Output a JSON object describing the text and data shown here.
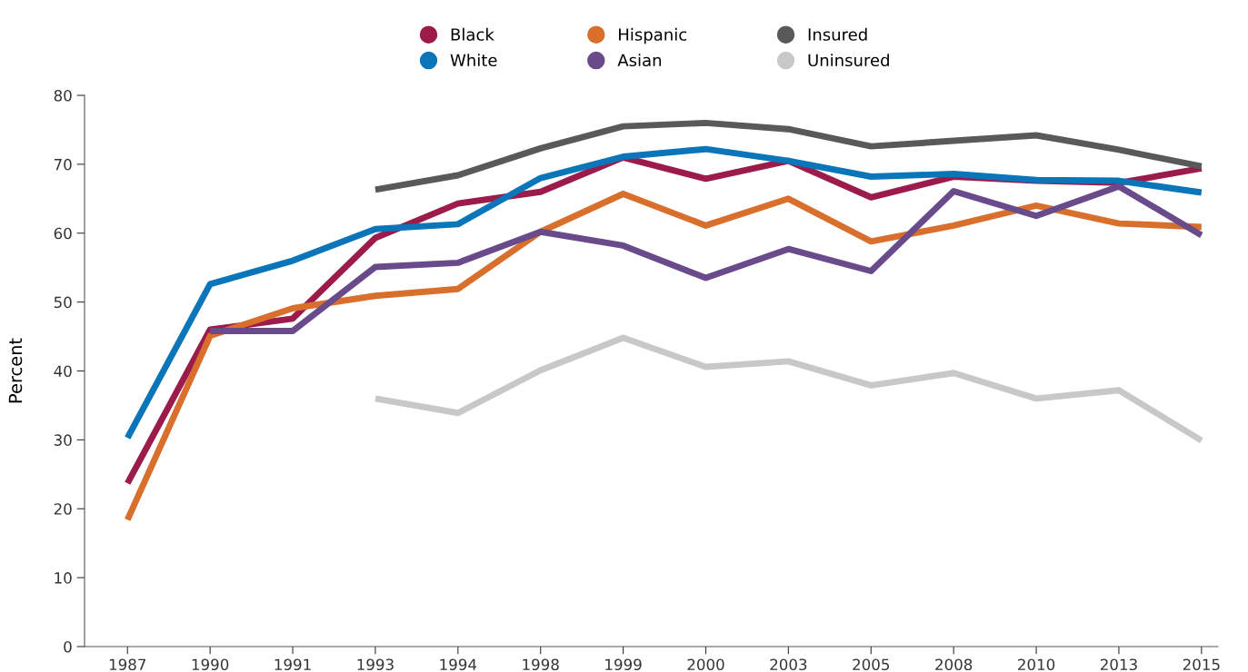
{
  "chart_data": {
    "type": "line",
    "ylabel": "Percent",
    "categories": [
      "1987",
      "1990",
      "1991",
      "1993",
      "1994",
      "1998",
      "1999",
      "2000",
      "2003",
      "2005",
      "2008",
      "2010",
      "2013",
      "2015"
    ],
    "series": [
      {
        "name": "Black",
        "color": "#9b1b4a",
        "values": [
          23.7,
          46.0,
          47.6,
          59.3,
          64.3,
          66.0,
          71.0,
          67.9,
          70.5,
          65.2,
          68.2,
          67.6,
          67.3,
          69.4
        ]
      },
      {
        "name": "White",
        "color": "#0a75b8",
        "values": [
          30.3,
          52.6,
          56.0,
          60.6,
          61.3,
          68.0,
          71.1,
          72.2,
          70.5,
          68.2,
          68.6,
          67.7,
          67.6,
          65.9
        ]
      },
      {
        "name": "Hispanic",
        "color": "#d96f2c",
        "values": [
          18.4,
          45.1,
          49.1,
          50.9,
          51.9,
          60.2,
          65.7,
          61.1,
          65.0,
          58.8,
          61.1,
          64.0,
          61.4,
          60.9
        ]
      },
      {
        "name": "Asian",
        "color": "#694a8a",
        "values": [
          null,
          45.8,
          45.8,
          55.1,
          55.7,
          60.2,
          58.2,
          53.5,
          57.7,
          54.5,
          66.1,
          62.5,
          66.8,
          59.7
        ]
      },
      {
        "name": "Insured",
        "color": "#595959",
        "values": [
          null,
          null,
          null,
          66.3,
          68.4,
          72.3,
          75.5,
          76.0,
          75.1,
          72.6,
          73.4,
          74.2,
          72.1,
          69.7
        ]
      },
      {
        "name": "Uninsured",
        "color": "#c8c8c8",
        "values": [
          null,
          null,
          null,
          36.0,
          33.9,
          40.1,
          44.8,
          40.6,
          41.4,
          37.9,
          39.7,
          36.0,
          37.2,
          29.9
        ]
      }
    ],
    "ylim": [
      0,
      80
    ],
    "yticks": [
      0,
      10,
      20,
      30,
      40,
      50,
      60,
      70,
      80
    ],
    "grid": false,
    "legend": "top",
    "marker": "none",
    "line_style": "solid"
  }
}
